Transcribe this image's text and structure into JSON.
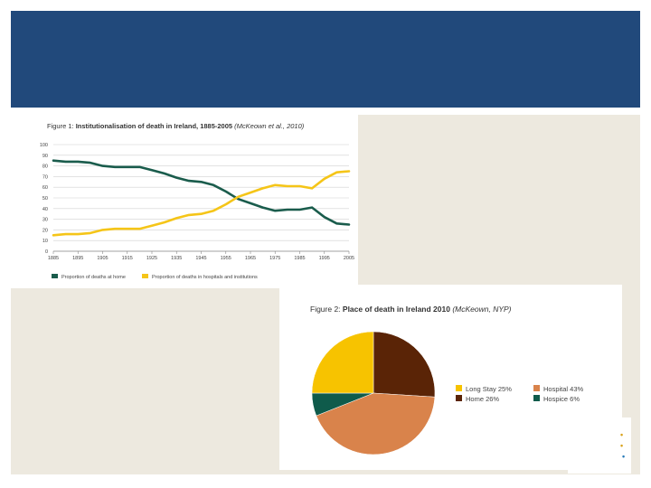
{
  "colors": {
    "banner": "#21497b",
    "background": "#ede9df",
    "home_series": "#1a5c4c",
    "hospital_series": "#f5c518",
    "pie_long_stay": "#f7c300",
    "pie_hospital": "#d9834b",
    "pie_home": "#5a2406",
    "pie_hospice": "#0f5b4b"
  },
  "chart_data": [
    {
      "type": "line",
      "title_prefix": "Figure 1: ",
      "title": "Institutionalisation of death in Ireland, 1885-2005",
      "title_citation": "(McKeown et al., 2010)",
      "x": [
        1885,
        1890,
        1895,
        1900,
        1905,
        1910,
        1915,
        1920,
        1925,
        1930,
        1935,
        1940,
        1945,
        1950,
        1955,
        1960,
        1965,
        1970,
        1975,
        1980,
        1985,
        1990,
        1995,
        2000,
        2005
      ],
      "x_ticks": [
        1885,
        1895,
        1905,
        1915,
        1925,
        1935,
        1945,
        1955,
        1965,
        1975,
        1985,
        1995,
        2005
      ],
      "ylim": [
        0,
        100
      ],
      "y_ticks": [
        0,
        10,
        20,
        30,
        40,
        50,
        60,
        70,
        80,
        90,
        100
      ],
      "grid": true,
      "xlabel": "",
      "ylabel": "",
      "series": [
        {
          "name": "Proportion of deaths at home",
          "values": [
            85,
            84,
            84,
            83,
            80,
            79,
            79,
            79,
            76,
            73,
            69,
            66,
            65,
            62,
            56,
            49,
            45,
            41,
            38,
            39,
            39,
            41,
            32,
            26,
            25
          ]
        },
        {
          "name": "Proportion of deaths in hospitals and institutions",
          "values": [
            15,
            16,
            16,
            17,
            20,
            21,
            21,
            21,
            24,
            27,
            31,
            34,
            35,
            38,
            44,
            51,
            55,
            59,
            62,
            61,
            61,
            59,
            68,
            74,
            75
          ]
        }
      ],
      "legend_position": "bottom"
    },
    {
      "type": "pie",
      "title_prefix": "Figure 2: ",
      "title": "Place of death in Ireland 2010",
      "title_citation": "(McKeown, NYP)",
      "slices": [
        {
          "label": "Home 26%",
          "value": 26
        },
        {
          "label": "Hospital 43%",
          "value": 43
        },
        {
          "label": "Hospice 6%",
          "value": 6
        },
        {
          "label": "Long Stay 25%",
          "value": 25
        }
      ],
      "legend": [
        "Long Stay 25%",
        "Hospital 43%",
        "Home 26%",
        "Hospice 6%"
      ],
      "legend_position": "right"
    }
  ]
}
